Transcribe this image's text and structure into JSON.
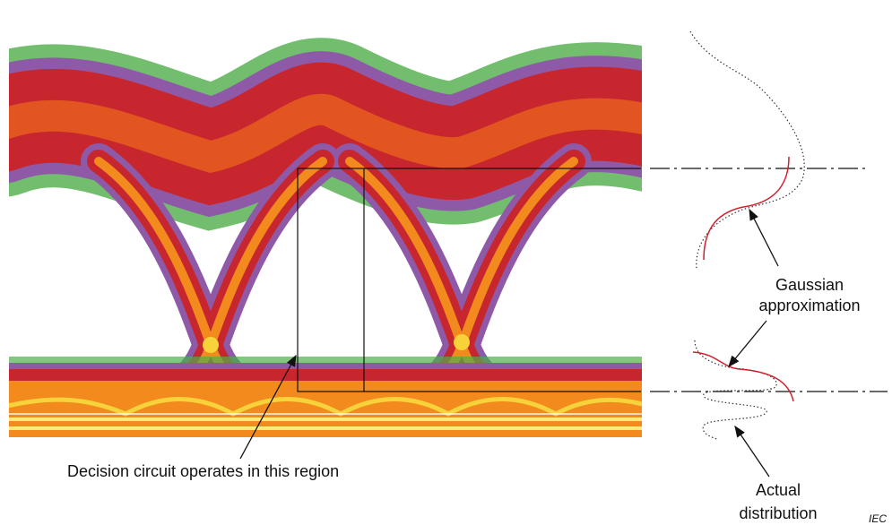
{
  "labels": {
    "gaussian": [
      "Gaussian",
      "approximation"
    ],
    "decision": "Decision circuit operates in this region",
    "actual": [
      "Actual",
      "distribution"
    ],
    "source": "IEC"
  }
}
